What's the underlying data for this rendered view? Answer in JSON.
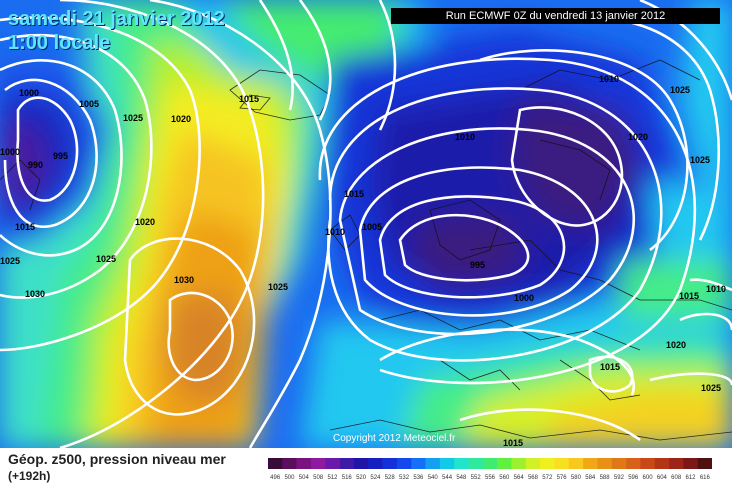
{
  "header": {
    "date": "samedi 21 janvier 2012",
    "time": "1:00 locale",
    "run": "Run ECMWF 0Z du vendredi 13 janvier 2012"
  },
  "copyright": "Copyright 2012 Meteociel.fr",
  "footer": {
    "title": "Géop. z500, pression niveau mer",
    "subtitle": "(+192h)"
  },
  "isobars": [
    {
      "label": "1000"
    },
    {
      "label": "1005"
    },
    {
      "label": "1025"
    },
    {
      "label": "1020"
    },
    {
      "label": "995"
    },
    {
      "label": "990"
    },
    {
      "label": "1015"
    },
    {
      "label": "1025"
    },
    {
      "label": "1020"
    },
    {
      "label": "1025"
    },
    {
      "label": "1030"
    },
    {
      "label": "1030"
    },
    {
      "label": "1025"
    },
    {
      "label": "1015"
    },
    {
      "label": "1015"
    },
    {
      "label": "1010"
    },
    {
      "label": "1005"
    },
    {
      "label": "995"
    },
    {
      "label": "1010"
    },
    {
      "label": "1010"
    },
    {
      "label": "1020"
    },
    {
      "label": "1025"
    },
    {
      "label": "1025"
    },
    {
      "label": "1000"
    },
    {
      "label": "1020"
    },
    {
      "label": "1015"
    },
    {
      "label": "1015"
    },
    {
      "label": "1015"
    },
    {
      "label": "1010"
    },
    {
      "label": "1025"
    },
    {
      "label": "1000"
    }
  ],
  "legend": {
    "scale_labels": [
      "496",
      "500",
      "504",
      "508",
      "512",
      "516",
      "520",
      "524",
      "528",
      "532",
      "536",
      "540",
      "544",
      "548",
      "552",
      "556",
      "560",
      "564",
      "568",
      "572",
      "576",
      "580",
      "584",
      "588",
      "592",
      "596",
      "600",
      "604",
      "608",
      "612",
      "616"
    ],
    "scale_colors": [
      "#3a0a3a",
      "#5c0e5e",
      "#7a1280",
      "#8e1aa0",
      "#6a1aa8",
      "#3e1aa8",
      "#2214a8",
      "#1420c0",
      "#1430d8",
      "#1448ec",
      "#1470f4",
      "#14a0f0",
      "#14c8e8",
      "#20e4cc",
      "#30e8a0",
      "#40ec70",
      "#60f040",
      "#9cf030",
      "#d0f028",
      "#f0f020",
      "#f8e020",
      "#f8c820",
      "#f0a818",
      "#e89018",
      "#e07818",
      "#d86018",
      "#c84818",
      "#b43418",
      "#9c2418",
      "#7a1818",
      "#501010"
    ]
  }
}
